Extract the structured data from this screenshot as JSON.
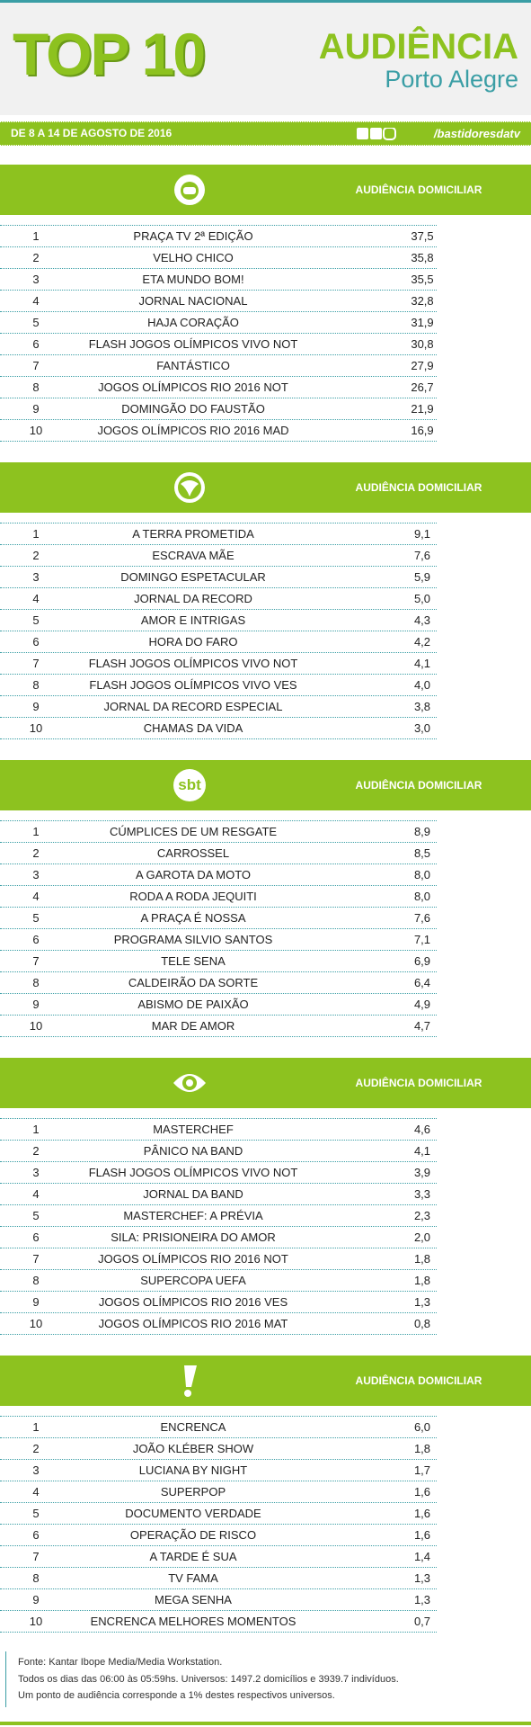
{
  "header": {
    "title": "TOP 10",
    "brand": "AUDIÊNCIA",
    "city": "Porto Alegre",
    "period": "DE 8 A 14 DE AGOSTO DE 2016",
    "handle": "/bastidoresdatv"
  },
  "sections": [
    {
      "column_title": "AUDIÊNCIA DOMICILIAR",
      "rows": [
        [
          "1",
          "PRAÇA TV 2ª EDIÇÃO",
          "37,5"
        ],
        [
          "2",
          "VELHO CHICO",
          "35,8"
        ],
        [
          "3",
          "ETA MUNDO BOM!",
          "35,5"
        ],
        [
          "4",
          "JORNAL NACIONAL",
          "32,8"
        ],
        [
          "5",
          "HAJA CORAÇÃO",
          "31,9"
        ],
        [
          "6",
          "FLASH JOGOS OLÍMPICOS VIVO NOT",
          "30,8"
        ],
        [
          "7",
          "FANTÁSTICO",
          "27,9"
        ],
        [
          "8",
          "JOGOS OLÍMPICOS RIO 2016 NOT",
          "26,7"
        ],
        [
          "9",
          "DOMINGÃO DO FAUSTÃO",
          "21,9"
        ],
        [
          "10",
          "JOGOS OLÍMPICOS RIO 2016 MAD",
          "16,9"
        ]
      ]
    },
    {
      "column_title": "AUDIÊNCIA DOMICILIAR",
      "rows": [
        [
          "1",
          "A TERRA PROMETIDA",
          "9,1"
        ],
        [
          "2",
          "ESCRAVA MÃE",
          "7,6"
        ],
        [
          "3",
          "DOMINGO ESPETACULAR",
          "5,9"
        ],
        [
          "4",
          "JORNAL DA RECORD",
          "5,0"
        ],
        [
          "5",
          "AMOR E INTRIGAS",
          "4,3"
        ],
        [
          "6",
          "HORA DO FARO",
          "4,2"
        ],
        [
          "7",
          "FLASH JOGOS OLÍMPICOS VIVO NOT",
          "4,1"
        ],
        [
          "8",
          "FLASH JOGOS OLÍMPICOS VIVO VES",
          "4,0"
        ],
        [
          "9",
          "JORNAL DA RECORD ESPECIAL",
          "3,8"
        ],
        [
          "10",
          "CHAMAS DA VIDA",
          "3,0"
        ]
      ]
    },
    {
      "logo_text": "sbt",
      "column_title": "AUDIÊNCIA DOMICILIAR",
      "rows": [
        [
          "1",
          "CÚMPLICES DE UM RESGATE",
          "8,9"
        ],
        [
          "2",
          "CARROSSEL",
          "8,5"
        ],
        [
          "3",
          "A GAROTA DA MOTO",
          "8,0"
        ],
        [
          "4",
          "RODA A RODA JEQUITI",
          "8,0"
        ],
        [
          "5",
          "A PRAÇA É NOSSA",
          "7,6"
        ],
        [
          "6",
          "PROGRAMA SILVIO SANTOS",
          "7,1"
        ],
        [
          "7",
          "TELE SENA",
          "6,9"
        ],
        [
          "8",
          "CALDEIRÃO DA SORTE",
          "6,4"
        ],
        [
          "9",
          "ABISMO DE PAIXÃO",
          "4,9"
        ],
        [
          "10",
          "MAR DE AMOR",
          "4,7"
        ]
      ]
    },
    {
      "column_title": "AUDIÊNCIA DOMICILIAR",
      "rows": [
        [
          "1",
          "MASTERCHEF",
          "4,6"
        ],
        [
          "2",
          "PÂNICO NA BAND",
          "4,1"
        ],
        [
          "3",
          "FLASH JOGOS OLÍMPICOS VIVO NOT",
          "3,9"
        ],
        [
          "4",
          "JORNAL DA BAND",
          "3,3"
        ],
        [
          "5",
          "MASTERCHEF: A PRÉVIA",
          "2,3"
        ],
        [
          "6",
          "SILA: PRISIONEIRA DO AMOR",
          "2,0"
        ],
        [
          "7",
          "JOGOS OLÍMPICOS RIO 2016 NOT",
          "1,8"
        ],
        [
          "8",
          "SUPERCOPA UEFA",
          "1,8"
        ],
        [
          "9",
          "JOGOS OLÍMPICOS RIO 2016 VES",
          "1,3"
        ],
        [
          "10",
          "JOGOS OLÍMPICOS RIO 2016 MAT",
          "0,8"
        ]
      ]
    },
    {
      "column_title": "AUDIÊNCIA DOMICILIAR",
      "rows": [
        [
          "1",
          "ENCRENCA",
          "6,0"
        ],
        [
          "2",
          "JOÃO KLÉBER SHOW",
          "1,8"
        ],
        [
          "3",
          "LUCIANA BY NIGHT",
          "1,7"
        ],
        [
          "4",
          "SUPERPOP",
          "1,6"
        ],
        [
          "5",
          "DOCUMENTO VERDADE",
          "1,6"
        ],
        [
          "6",
          "OPERAÇÃO DE RISCO",
          "1,6"
        ],
        [
          "7",
          "A TARDE É SUA",
          "1,4"
        ],
        [
          "8",
          "TV FAMA",
          "1,3"
        ],
        [
          "9",
          "MEGA SENHA",
          "1,3"
        ],
        [
          "10",
          "ENCRENCA MELHORES MOMENTOS",
          "0,7"
        ]
      ]
    }
  ],
  "footer": [
    "Fonte: Kantar Ibope Media/Media Workstation.",
    "Todos os dias das 06:00 às 05:59hs. Universos: 1497.2 domicílios e 3939.7 indivíduos.",
    "Um ponto de audiência corresponde a 1% destes respectivos universos."
  ]
}
